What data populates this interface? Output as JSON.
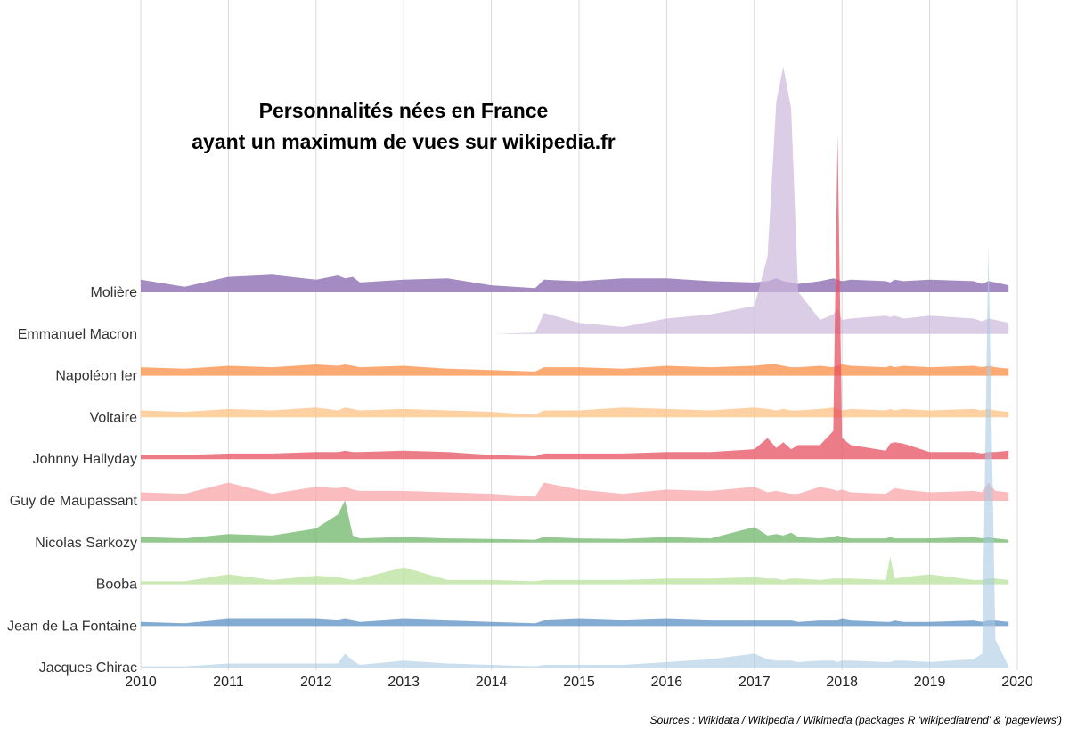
{
  "chart_data": {
    "type": "area",
    "title": "Personnalités nées en France\nayant un maximum de vues sur wikipedia.fr",
    "source": "Sources : Wikidata / Wikipedia / Wikimedia (packages R 'wikipediatrend' & 'pageviews')",
    "x_ticks": [
      "2010",
      "2011",
      "2012",
      "2013",
      "2014",
      "2015",
      "2016",
      "2017",
      "2018",
      "2019",
      "2020"
    ],
    "xlim": [
      2010,
      2020
    ],
    "grid": true,
    "legend": "none",
    "x": [
      2010.0,
      2010.5,
      2011.0,
      2011.5,
      2012.0,
      2012.25,
      2012.33,
      2012.42,
      2012.5,
      2013.0,
      2013.5,
      2014.0,
      2014.5,
      2014.6,
      2015.0,
      2015.5,
      2016.0,
      2016.5,
      2017.0,
      2017.15,
      2017.25,
      2017.33,
      2017.42,
      2017.5,
      2017.75,
      2017.9,
      2017.95,
      2018.0,
      2018.1,
      2018.5,
      2018.55,
      2018.6,
      2018.7,
      2019.0,
      2019.5,
      2019.6,
      2019.67,
      2019.75,
      2019.9
    ],
    "series": [
      {
        "name": "Molière",
        "color": "#9a7fbb",
        "opacity": 0.9,
        "values": [
          18,
          8,
          22,
          25,
          18,
          24,
          20,
          22,
          14,
          18,
          20,
          10,
          6,
          18,
          16,
          20,
          20,
          16,
          14,
          16,
          20,
          16,
          14,
          12,
          16,
          20,
          18,
          16,
          18,
          16,
          14,
          18,
          16,
          18,
          16,
          12,
          16,
          14,
          10
        ]
      },
      {
        "name": "Emmanuel Macron",
        "color": "#cdb8dd",
        "opacity": 0.7,
        "values": [
          0,
          0,
          0,
          0,
          0,
          0,
          0,
          0,
          0,
          0,
          0,
          0,
          2,
          30,
          16,
          10,
          22,
          28,
          40,
          110,
          330,
          380,
          320,
          60,
          20,
          28,
          36,
          20,
          22,
          26,
          24,
          26,
          22,
          26,
          22,
          18,
          22,
          20,
          16
        ]
      },
      {
        "name": "Napoléon Ier",
        "color": "#fd9a5b",
        "opacity": 0.85,
        "values": [
          12,
          10,
          14,
          12,
          16,
          14,
          16,
          14,
          12,
          14,
          10,
          8,
          6,
          12,
          12,
          10,
          14,
          12,
          14,
          16,
          16,
          14,
          12,
          12,
          14,
          12,
          14,
          16,
          14,
          12,
          14,
          12,
          14,
          12,
          14,
          12,
          14,
          12,
          10
        ]
      },
      {
        "name": "Voltaire",
        "color": "#fdc68c",
        "opacity": 0.8,
        "values": [
          10,
          8,
          12,
          10,
          14,
          10,
          14,
          12,
          10,
          12,
          10,
          8,
          4,
          10,
          10,
          14,
          12,
          10,
          14,
          12,
          10,
          12,
          10,
          10,
          12,
          14,
          12,
          10,
          12,
          10,
          12,
          10,
          12,
          10,
          12,
          10,
          12,
          10,
          8
        ]
      },
      {
        "name": "Johnny Hallyday",
        "color": "#e6505f",
        "opacity": 0.75,
        "values": [
          6,
          6,
          8,
          8,
          10,
          10,
          12,
          10,
          10,
          12,
          10,
          6,
          4,
          8,
          8,
          8,
          10,
          10,
          14,
          30,
          16,
          24,
          14,
          20,
          20,
          40,
          460,
          30,
          20,
          12,
          22,
          24,
          22,
          10,
          10,
          8,
          10,
          10,
          12
        ]
      },
      {
        "name": "Guy de Maupassant",
        "color": "#f8a5a8",
        "opacity": 0.75,
        "values": [
          12,
          10,
          26,
          10,
          20,
          18,
          20,
          16,
          14,
          14,
          12,
          10,
          6,
          26,
          16,
          10,
          16,
          14,
          20,
          12,
          14,
          12,
          10,
          10,
          20,
          16,
          14,
          16,
          12,
          10,
          14,
          18,
          16,
          12,
          14,
          12,
          26,
          14,
          12
        ]
      },
      {
        "name": "Nicolas Sarkozy",
        "color": "#6fb56a",
        "opacity": 0.75,
        "values": [
          8,
          6,
          12,
          10,
          20,
          40,
          60,
          10,
          6,
          8,
          6,
          5,
          4,
          8,
          6,
          5,
          8,
          6,
          22,
          10,
          12,
          10,
          14,
          8,
          6,
          8,
          10,
          8,
          6,
          6,
          8,
          6,
          6,
          6,
          8,
          6,
          8,
          6,
          4
        ]
      },
      {
        "name": "Booba",
        "color": "#b5df94",
        "opacity": 0.7,
        "values": [
          4,
          4,
          14,
          6,
          12,
          10,
          8,
          6,
          8,
          24,
          6,
          6,
          4,
          6,
          6,
          6,
          8,
          8,
          10,
          8,
          8,
          6,
          8,
          8,
          6,
          8,
          8,
          8,
          8,
          6,
          40,
          8,
          10,
          14,
          6,
          6,
          8,
          8,
          6
        ]
      },
      {
        "name": "Jean de La Fontaine",
        "color": "#5b8fc1",
        "opacity": 0.75,
        "values": [
          6,
          4,
          10,
          10,
          10,
          8,
          10,
          8,
          6,
          10,
          8,
          6,
          4,
          8,
          10,
          8,
          10,
          8,
          8,
          8,
          8,
          8,
          8,
          6,
          8,
          8,
          8,
          10,
          8,
          6,
          6,
          8,
          6,
          6,
          8,
          6,
          8,
          8,
          6
        ]
      },
      {
        "name": "Jacques Chirac",
        "color": "#a8c9e2",
        "opacity": 0.6,
        "values": [
          2,
          2,
          6,
          6,
          6,
          6,
          20,
          10,
          4,
          10,
          6,
          4,
          2,
          4,
          4,
          4,
          8,
          12,
          20,
          12,
          10,
          10,
          10,
          8,
          10,
          10,
          8,
          10,
          10,
          8,
          8,
          10,
          10,
          8,
          12,
          20,
          600,
          40,
          2
        ]
      }
    ]
  }
}
